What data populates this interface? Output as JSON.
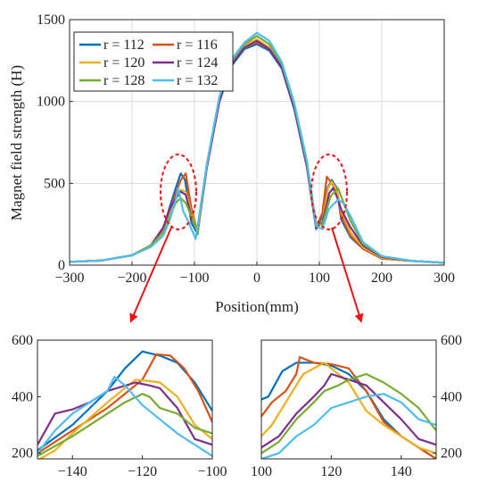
{
  "chart_data": [
    {
      "type": "line",
      "xlabel": "Position(mm)",
      "ylabel": "Magnet field strength (H)",
      "xlim": [
        -300,
        300
      ],
      "ylim": [
        0,
        1500
      ],
      "xticks": [
        -300,
        -200,
        -100,
        0,
        100,
        200,
        300
      ],
      "yticks": [
        0,
        500,
        1000,
        1500
      ],
      "grid": true,
      "legend": {
        "placement": "top-left",
        "columns": 2
      },
      "series": [
        {
          "name": "r = 112",
          "color": "#0072BD",
          "x": [
            -300,
            -250,
            -200,
            -170,
            -150,
            -140,
            -130,
            -122,
            -115,
            -105,
            -95,
            -80,
            -60,
            -40,
            -20,
            0,
            20,
            40,
            60,
            80,
            95,
            105,
            113,
            120,
            128,
            135,
            150,
            170,
            200,
            250,
            300
          ],
          "y": [
            20,
            28,
            60,
            120,
            220,
            350,
            470,
            560,
            520,
            260,
            190,
            620,
            1000,
            1220,
            1320,
            1350,
            1310,
            1200,
            950,
            600,
            220,
            300,
            470,
            520,
            470,
            280,
            170,
            100,
            40,
            25,
            15
          ]
        },
        {
          "name": "r = 116",
          "color": "#D95319",
          "x": [
            -300,
            -250,
            -200,
            -170,
            -150,
            -140,
            -130,
            -122,
            -114,
            -105,
            -95,
            -80,
            -60,
            -40,
            -20,
            0,
            20,
            40,
            60,
            80,
            95,
            105,
            112,
            120,
            128,
            135,
            150,
            170,
            200,
            250,
            300
          ],
          "y": [
            20,
            28,
            60,
            120,
            210,
            330,
            440,
            520,
            560,
            350,
            200,
            600,
            1010,
            1230,
            1330,
            1360,
            1320,
            1210,
            960,
            610,
            230,
            320,
            540,
            500,
            450,
            300,
            180,
            100,
            40,
            25,
            15
          ]
        },
        {
          "name": "r = 120",
          "color": "#EDB120",
          "x": [
            -300,
            -250,
            -200,
            -170,
            -150,
            -140,
            -130,
            -122,
            -114,
            -105,
            -95,
            -80,
            -60,
            -40,
            -20,
            0,
            20,
            40,
            60,
            80,
            95,
            105,
            114,
            120,
            128,
            135,
            150,
            170,
            200,
            250,
            300
          ],
          "y": [
            20,
            28,
            60,
            120,
            200,
            300,
            400,
            460,
            450,
            320,
            200,
            610,
            1020,
            1240,
            1340,
            1380,
            1330,
            1220,
            970,
            620,
            240,
            260,
            470,
            510,
            460,
            330,
            200,
            110,
            45,
            25,
            15
          ]
        },
        {
          "name": "r = 124",
          "color": "#7E2F8E",
          "x": [
            -300,
            -250,
            -200,
            -170,
            -150,
            -140,
            -130,
            -122,
            -114,
            -105,
            -95,
            -80,
            -60,
            -40,
            -20,
            0,
            20,
            40,
            60,
            80,
            95,
            105,
            116,
            122,
            128,
            135,
            150,
            170,
            200,
            250,
            300
          ],
          "y": [
            20,
            28,
            60,
            120,
            230,
            340,
            410,
            450,
            430,
            300,
            200,
            600,
            1000,
            1230,
            1330,
            1370,
            1320,
            1210,
            960,
            610,
            230,
            260,
            440,
            470,
            420,
            340,
            230,
            120,
            50,
            25,
            15
          ]
        },
        {
          "name": "r = 128",
          "color": "#77AC30",
          "x": [
            -300,
            -250,
            -200,
            -170,
            -150,
            -140,
            -130,
            -122,
            -114,
            -105,
            -95,
            -80,
            -60,
            -40,
            -20,
            0,
            20,
            40,
            60,
            80,
            95,
            105,
            118,
            125,
            130,
            135,
            150,
            170,
            200,
            250,
            300
          ],
          "y": [
            20,
            28,
            60,
            120,
            200,
            290,
            380,
            410,
            380,
            300,
            200,
            620,
            1030,
            1250,
            1350,
            1400,
            1350,
            1230,
            980,
            630,
            250,
            250,
            420,
            450,
            470,
            420,
            270,
            130,
            55,
            25,
            15
          ]
        },
        {
          "name": "r = 132",
          "color": "#4DBEEE",
          "x": [
            -300,
            -250,
            -200,
            -170,
            -150,
            -140,
            -130,
            -126,
            -118,
            -108,
            -98,
            -80,
            -60,
            -40,
            -20,
            0,
            20,
            40,
            60,
            80,
            95,
            105,
            115,
            122,
            130,
            138,
            150,
            170,
            200,
            250,
            300
          ],
          "y": [
            20,
            28,
            60,
            110,
            180,
            270,
            400,
            470,
            330,
            250,
            160,
            620,
            1030,
            1260,
            1360,
            1420,
            1370,
            1240,
            990,
            640,
            240,
            220,
            340,
            370,
            400,
            380,
            300,
            140,
            55,
            25,
            15
          ]
        }
      ]
    },
    {
      "type": "line",
      "xlim": [
        -150,
        -100
      ],
      "ylim": [
        180,
        600
      ],
      "xticks": [
        -140,
        -120,
        -100
      ],
      "yticks": [
        200,
        400,
        600
      ],
      "series": [
        {
          "name": "r = 112",
          "color": "#0072BD",
          "x": [
            -150,
            -140,
            -130,
            -125,
            -120,
            -115,
            -110,
            -105,
            -100
          ],
          "y": [
            210,
            300,
            420,
            500,
            560,
            545,
            520,
            450,
            350
          ]
        },
        {
          "name": "r = 116",
          "color": "#D95319",
          "x": [
            -150,
            -140,
            -130,
            -120,
            -116,
            -112,
            -108,
            -104,
            -100
          ],
          "y": [
            200,
            280,
            360,
            460,
            550,
            545,
            500,
            420,
            310
          ]
        },
        {
          "name": "r = 120",
          "color": "#EDB120",
          "x": [
            -150,
            -145,
            -140,
            -130,
            -122,
            -118,
            -115,
            -110,
            -105,
            -100
          ],
          "y": [
            175,
            210,
            270,
            380,
            460,
            455,
            450,
            400,
            300,
            250
          ]
        },
        {
          "name": "r = 124",
          "color": "#7E2F8E",
          "x": [
            -150,
            -145,
            -140,
            -135,
            -130,
            -122,
            -118,
            -115,
            -110,
            -105,
            -100
          ],
          "y": [
            230,
            340,
            355,
            380,
            420,
            450,
            440,
            430,
            360,
            250,
            230
          ]
        },
        {
          "name": "r = 128",
          "color": "#77AC30",
          "x": [
            -150,
            -140,
            -130,
            -125,
            -120,
            -118,
            -115,
            -110,
            -105,
            -100
          ],
          "y": [
            190,
            260,
            340,
            380,
            410,
            400,
            360,
            340,
            290,
            270
          ]
        },
        {
          "name": "r = 132",
          "color": "#4DBEEE",
          "x": [
            -150,
            -145,
            -140,
            -135,
            -130,
            -128,
            -125,
            -120,
            -115,
            -110,
            -105,
            -100
          ],
          "y": [
            200,
            280,
            340,
            380,
            420,
            470,
            440,
            370,
            320,
            270,
            230,
            190
          ]
        }
      ]
    },
    {
      "type": "line",
      "xlim": [
        100,
        150
      ],
      "ylim": [
        180,
        600
      ],
      "xticks": [
        100,
        120,
        140
      ],
      "yticks": [
        200,
        400,
        600
      ],
      "series": [
        {
          "name": "r = 112",
          "color": "#0072BD",
          "x": [
            100,
            102,
            106,
            110,
            115,
            120,
            125,
            130,
            135,
            140,
            145,
            150
          ],
          "y": [
            390,
            400,
            490,
            520,
            520,
            510,
            480,
            420,
            320,
            260,
            220,
            180
          ]
        },
        {
          "name": "r = 116",
          "color": "#D95319",
          "x": [
            100,
            103,
            107,
            110,
            111,
            115,
            120,
            125,
            130,
            135,
            140,
            145,
            150
          ],
          "y": [
            330,
            380,
            420,
            480,
            540,
            520,
            515,
            500,
            420,
            310,
            260,
            220,
            180
          ]
        },
        {
          "name": "r = 120",
          "color": "#EDB120",
          "x": [
            100,
            103,
            107,
            112,
            118,
            120,
            125,
            130,
            135,
            140,
            145,
            150
          ],
          "y": [
            260,
            300,
            380,
            480,
            520,
            500,
            450,
            350,
            300,
            260,
            220,
            200
          ]
        },
        {
          "name": "r = 124",
          "color": "#7E2F8E",
          "x": [
            100,
            105,
            110,
            115,
            118,
            120,
            125,
            130,
            135,
            140,
            145,
            150
          ],
          "y": [
            220,
            260,
            340,
            400,
            440,
            480,
            460,
            440,
            380,
            320,
            250,
            230
          ]
        },
        {
          "name": "r = 128",
          "color": "#77AC30",
          "x": [
            100,
            105,
            110,
            115,
            118,
            122,
            125,
            130,
            135,
            140,
            145,
            150
          ],
          "y": [
            200,
            240,
            320,
            380,
            420,
            440,
            460,
            480,
            450,
            410,
            360,
            280
          ]
        },
        {
          "name": "r = 132",
          "color": "#4DBEEE",
          "x": [
            100,
            105,
            110,
            115,
            120,
            125,
            130,
            135,
            140,
            145,
            150
          ],
          "y": [
            180,
            200,
            260,
            300,
            360,
            380,
            400,
            410,
            380,
            320,
            300
          ]
        }
      ]
    }
  ]
}
